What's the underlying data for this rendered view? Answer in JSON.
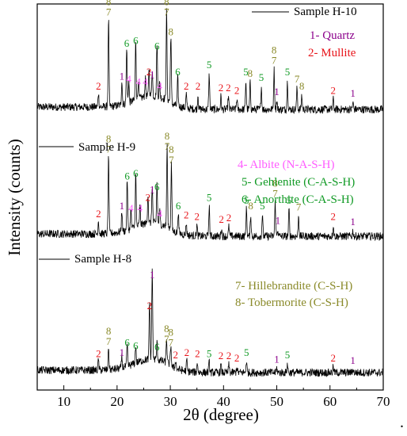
{
  "colors": {
    "trace": "#000000",
    "quartz": "#8b008b",
    "mullite": "#e8141a",
    "albite": "#ff5cff",
    "anorthite_group": "#119a25",
    "crystal_group": "#8a8a2a"
  },
  "chart_data": {
    "type": "line",
    "xlabel": "2θ (degree)",
    "ylabel": "Intensity (counts)",
    "xlim": [
      5,
      70
    ],
    "xticks": [
      10,
      20,
      30,
      40,
      50,
      60,
      70
    ],
    "legend": [
      {
        "text": "1- Quartz",
        "color": "#8b008b"
      },
      {
        "text": "2- Mullite",
        "color": "#e8141a"
      },
      {
        "text": "4- Albite (N-A-S-H)",
        "color": "#ff5cff"
      },
      {
        "text": "5- Gehlenite (C-A-S-H)",
        "color": "#119a25"
      },
      {
        "text": "6- Anorthite (C-A-S-H)",
        "color": "#119a25"
      },
      {
        "text": "7- Hillebrandite (C-S-H)",
        "color": "#8a8a2a"
      },
      {
        "text": "8- Tobermorite (C-S-H)",
        "color": "#8a8a2a"
      }
    ],
    "series": [
      {
        "name": "Sample H-10",
        "peaks": [
          {
            "x": 16.5,
            "h": 0.1,
            "labels": [
              "2"
            ]
          },
          {
            "x": 18.4,
            "h": 0.62,
            "labels": [
              "8",
              "7"
            ]
          },
          {
            "x": 20.9,
            "h": 0.17,
            "labels": [
              "1"
            ]
          },
          {
            "x": 21.8,
            "h": 0.4,
            "labels": [
              "6"
            ]
          },
          {
            "x": 22.2,
            "h": 0.15,
            "labels": [
              "4"
            ]
          },
          {
            "x": 23.5,
            "h": 0.42,
            "labels": [
              "6"
            ]
          },
          {
            "x": 24.0,
            "h": 0.13,
            "labels": [
              "4"
            ]
          },
          {
            "x": 25.3,
            "h": 0.13,
            "labels": [
              "4"
            ]
          },
          {
            "x": 26.0,
            "h": 0.2,
            "labels": [
              "2"
            ]
          },
          {
            "x": 26.6,
            "h": 0.18,
            "labels": [
              "1"
            ]
          },
          {
            "x": 27.5,
            "h": 0.38,
            "labels": [
              "6"
            ]
          },
          {
            "x": 28.0,
            "h": 0.1,
            "labels": [
              "4"
            ]
          },
          {
            "x": 29.3,
            "h": 0.62,
            "labels": [
              "8",
              "7"
            ]
          },
          {
            "x": 30.1,
            "h": 0.48,
            "labels": [
              "8"
            ]
          },
          {
            "x": 31.4,
            "h": 0.2,
            "labels": [
              "6"
            ]
          },
          {
            "x": 33.0,
            "h": 0.1,
            "labels": [
              "2"
            ]
          },
          {
            "x": 35.2,
            "h": 0.1,
            "labels": [
              "2"
            ]
          },
          {
            "x": 37.3,
            "h": 0.25,
            "labels": [
              "5"
            ]
          },
          {
            "x": 39.5,
            "h": 0.09,
            "labels": [
              "2"
            ]
          },
          {
            "x": 40.9,
            "h": 0.09,
            "labels": [
              "2"
            ]
          },
          {
            "x": 42.5,
            "h": 0.07,
            "labels": [
              "2"
            ]
          },
          {
            "x": 44.2,
            "h": 0.2,
            "labels": [
              "5"
            ]
          },
          {
            "x": 45.0,
            "h": 0.19,
            "labels": [
              "8"
            ]
          },
          {
            "x": 47.1,
            "h": 0.16,
            "labels": [
              "5"
            ]
          },
          {
            "x": 49.5,
            "h": 0.28,
            "labels": [
              "8",
              "7"
            ]
          },
          {
            "x": 50.0,
            "h": 0.06,
            "labels": [
              "1"
            ]
          },
          {
            "x": 52.0,
            "h": 0.2,
            "labels": [
              "5"
            ]
          },
          {
            "x": 53.8,
            "h": 0.15,
            "labels": [
              "7"
            ]
          },
          {
            "x": 54.7,
            "h": 0.1,
            "labels": [
              "8"
            ]
          },
          {
            "x": 60.6,
            "h": 0.07,
            "labels": [
              "2"
            ]
          },
          {
            "x": 64.3,
            "h": 0.05,
            "labels": [
              "1"
            ]
          }
        ]
      },
      {
        "name": "Sample H-9",
        "peaks": [
          {
            "x": 16.5,
            "h": 0.1,
            "labels": [
              "2"
            ]
          },
          {
            "x": 18.4,
            "h": 0.58,
            "labels": [
              "8",
              "7"
            ]
          },
          {
            "x": 20.9,
            "h": 0.16,
            "labels": [
              "1"
            ]
          },
          {
            "x": 21.9,
            "h": 0.38,
            "labels": [
              "6"
            ]
          },
          {
            "x": 22.6,
            "h": 0.14,
            "labels": [
              "4"
            ]
          },
          {
            "x": 23.5,
            "h": 0.4,
            "labels": [
              "6"
            ]
          },
          {
            "x": 24.3,
            "h": 0.14,
            "labels": [
              "4"
            ]
          },
          {
            "x": 25.8,
            "h": 0.22,
            "labels": [
              "2"
            ]
          },
          {
            "x": 26.6,
            "h": 0.28,
            "labels": [
              "1"
            ]
          },
          {
            "x": 27.5,
            "h": 0.3,
            "labels": [
              "6"
            ]
          },
          {
            "x": 28.0,
            "h": 0.1,
            "labels": [
              "4"
            ]
          },
          {
            "x": 29.4,
            "h": 0.6,
            "labels": [
              "8",
              "7"
            ]
          },
          {
            "x": 30.2,
            "h": 0.5,
            "labels": [
              "8",
              "7"
            ]
          },
          {
            "x": 31.5,
            "h": 0.16,
            "labels": [
              "6"
            ]
          },
          {
            "x": 33.0,
            "h": 0.09,
            "labels": [
              "2"
            ]
          },
          {
            "x": 35.0,
            "h": 0.08,
            "labels": [
              "2"
            ]
          },
          {
            "x": 37.3,
            "h": 0.22,
            "labels": [
              "5"
            ]
          },
          {
            "x": 39.6,
            "h": 0.06,
            "labels": [
              "2"
            ]
          },
          {
            "x": 41.0,
            "h": 0.07,
            "labels": [
              "2"
            ]
          },
          {
            "x": 44.3,
            "h": 0.2,
            "labels": [
              "5"
            ]
          },
          {
            "x": 45.1,
            "h": 0.16,
            "labels": [
              "8"
            ]
          },
          {
            "x": 47.3,
            "h": 0.16,
            "labels": [
              "5"
            ]
          },
          {
            "x": 49.7,
            "h": 0.25,
            "labels": [
              "8",
              "7"
            ]
          },
          {
            "x": 50.2,
            "h": 0.05,
            "labels": [
              "1"
            ]
          },
          {
            "x": 52.3,
            "h": 0.2,
            "labels": [
              "5"
            ]
          },
          {
            "x": 54.1,
            "h": 0.15,
            "labels": [
              "7"
            ]
          },
          {
            "x": 60.6,
            "h": 0.08,
            "labels": [
              "2"
            ]
          },
          {
            "x": 64.3,
            "h": 0.04,
            "labels": [
              "1"
            ]
          }
        ]
      },
      {
        "name": "Sample H-8",
        "peaks": [
          {
            "x": 16.5,
            "h": 0.09,
            "labels": [
              "2"
            ]
          },
          {
            "x": 18.4,
            "h": 0.2,
            "labels": [
              "8",
              "7"
            ]
          },
          {
            "x": 20.9,
            "h": 0.1,
            "labels": [
              "1"
            ]
          },
          {
            "x": 21.9,
            "h": 0.19,
            "labels": [
              "6"
            ]
          },
          {
            "x": 23.5,
            "h": 0.16,
            "labels": [
              "6"
            ]
          },
          {
            "x": 26.1,
            "h": 0.52,
            "labels": [
              "2"
            ]
          },
          {
            "x": 26.6,
            "h": 0.8,
            "labels": [
              "1"
            ]
          },
          {
            "x": 27.5,
            "h": 0.15,
            "labels": [
              "6"
            ]
          },
          {
            "x": 29.3,
            "h": 0.22,
            "labels": [
              "8",
              "7"
            ]
          },
          {
            "x": 30.1,
            "h": 0.19,
            "labels": [
              "8",
              "7"
            ]
          },
          {
            "x": 31.0,
            "h": 0.08,
            "labels": [
              "2"
            ]
          },
          {
            "x": 33.1,
            "h": 0.1,
            "labels": [
              "2"
            ]
          },
          {
            "x": 35.1,
            "h": 0.09,
            "labels": [
              "2"
            ]
          },
          {
            "x": 37.3,
            "h": 0.09,
            "labels": [
              "5"
            ]
          },
          {
            "x": 39.5,
            "h": 0.07,
            "labels": [
              "2"
            ]
          },
          {
            "x": 41.0,
            "h": 0.07,
            "labels": [
              "2"
            ]
          },
          {
            "x": 42.5,
            "h": 0.05,
            "labels": [
              "2"
            ]
          },
          {
            "x": 44.3,
            "h": 0.1,
            "labels": [
              "5"
            ]
          },
          {
            "x": 50.0,
            "h": 0.04,
            "labels": [
              "1"
            ]
          },
          {
            "x": 52.0,
            "h": 0.08,
            "labels": [
              "5"
            ]
          },
          {
            "x": 60.6,
            "h": 0.05,
            "labels": [
              "2"
            ]
          },
          {
            "x": 64.3,
            "h": 0.03,
            "labels": [
              "1"
            ]
          }
        ]
      }
    ]
  }
}
